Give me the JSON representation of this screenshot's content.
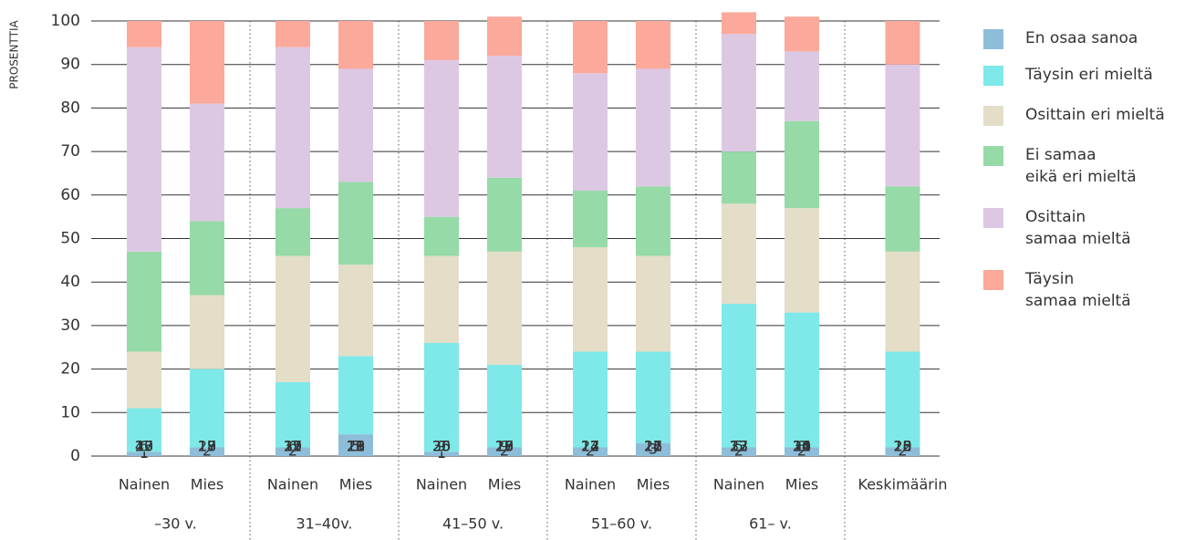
{
  "chart_data": {
    "type": "stacked_bar",
    "y_label": "PROSENTTIA",
    "categories": [
      "Nainen",
      "Mies",
      "Nainen",
      "Mies",
      "Nainen",
      "Mies",
      "Nainen",
      "Mies",
      "Nainen",
      "Mies",
      "Keskimäärin"
    ],
    "groups": [
      "–30 v.",
      "31–40v.",
      "41–50 v.",
      "51–60 v.",
      "61– v."
    ],
    "ylim": [
      0,
      100
    ],
    "yticks": [
      0,
      10,
      20,
      30,
      40,
      50,
      60,
      70,
      80,
      90,
      100
    ],
    "grid": true,
    "legend": "right",
    "series": [
      {
        "name": "En osaa sanoa",
        "color": "#8dbdd8",
        "values": [
          1,
          2,
          2,
          5,
          1,
          2,
          2,
          3,
          2,
          2,
          2
        ]
      },
      {
        "name": "Täysin eri mieltä",
        "color": "#7fe8e8",
        "values": [
          10,
          18,
          15,
          18,
          25,
          19,
          22,
          21,
          33,
          31,
          22
        ]
      },
      {
        "name": "Osittain eri mieltä",
        "color": "#e4ddc7",
        "values": [
          13,
          17,
          29,
          21,
          20,
          26,
          24,
          22,
          23,
          24,
          23
        ]
      },
      {
        "name": "Ei samaa\neikä eri mieltä",
        "color": "#96daa8",
        "values": [
          23,
          17,
          11,
          19,
          9,
          17,
          13,
          16,
          12,
          20,
          15
        ]
      },
      {
        "name": "Osittain\nsamaa mieltä",
        "color": "#ddc8e4",
        "values": [
          47,
          27,
          37,
          26,
          36,
          28,
          27,
          27,
          27,
          16,
          28
        ]
      },
      {
        "name": "Täysin\nsamaa mieltä",
        "color": "#fba99a",
        "values": [
          6,
          19,
          6,
          11,
          9,
          9,
          12,
          11,
          5,
          8,
          10
        ]
      }
    ]
  }
}
